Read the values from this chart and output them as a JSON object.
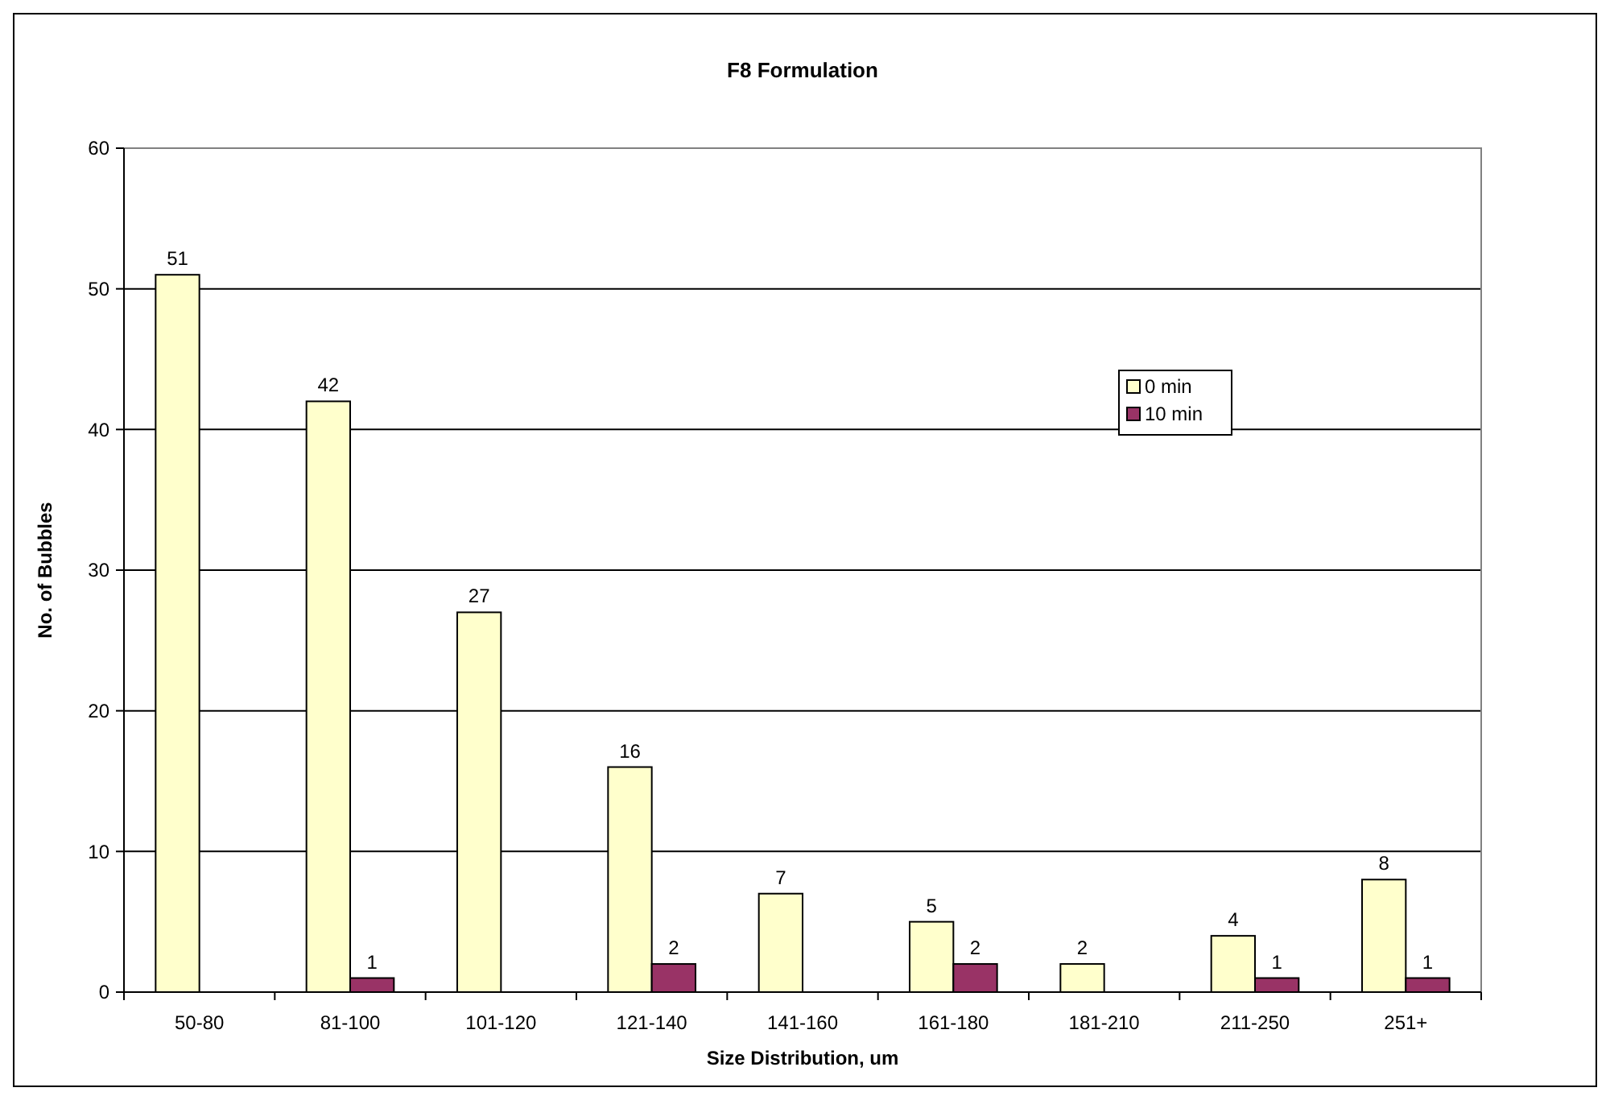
{
  "chart_data": {
    "type": "bar",
    "title": "F8 Formulation",
    "xlabel": "Size Distribution, um",
    "ylabel": "No. of Bubbles",
    "categories": [
      "50-80",
      "81-100",
      "101-120",
      "121-140",
      "141-160",
      "161-180",
      "181-210",
      "211-250",
      "251+"
    ],
    "series": [
      {
        "name": "0 min",
        "color": "#ffffcc",
        "values": [
          51,
          42,
          27,
          16,
          7,
          5,
          2,
          4,
          8
        ]
      },
      {
        "name": "10 min",
        "color": "#993366",
        "values": [
          null,
          1,
          null,
          2,
          null,
          2,
          null,
          1,
          1
        ]
      }
    ],
    "ylim": [
      0,
      60
    ],
    "yticks": [
      0,
      10,
      20,
      30,
      40,
      50,
      60
    ],
    "grid": "y",
    "legend": "top right",
    "data_labels": true
  }
}
